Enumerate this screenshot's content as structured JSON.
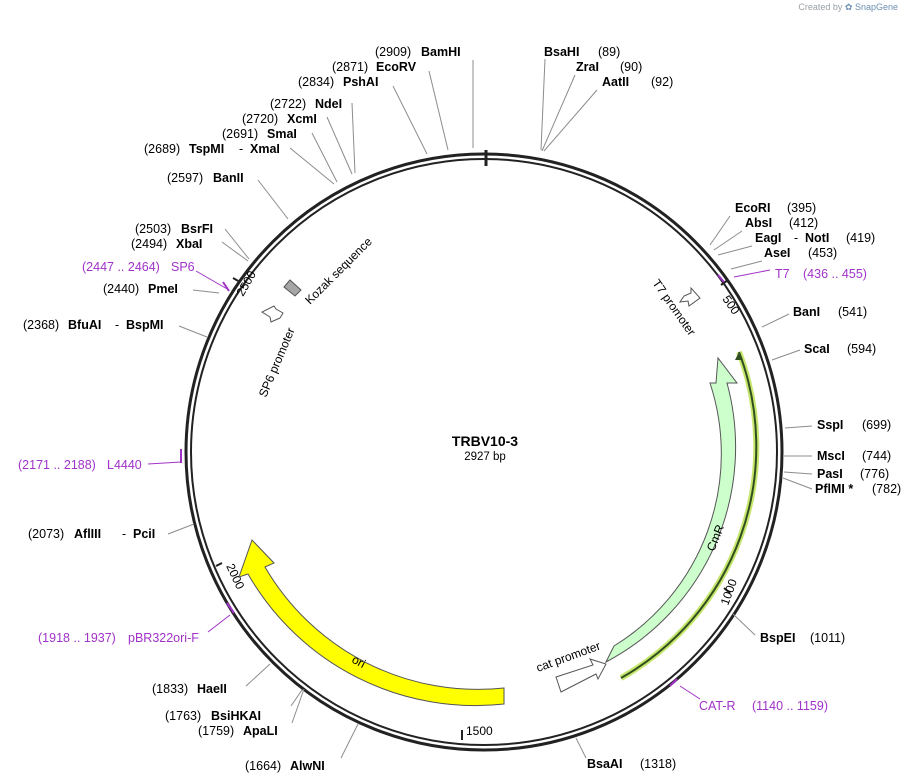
{
  "credit": {
    "prefix": "Created by",
    "brand": "SnapGene"
  },
  "plasmid": {
    "name": "TRBV10-3",
    "length_label": "2927 bp",
    "length": 2927
  },
  "ticks": [
    {
      "label": "500"
    },
    {
      "label": "1000"
    },
    {
      "label": "1500"
    },
    {
      "label": "2000"
    },
    {
      "label": "2500"
    }
  ],
  "enzymes": [
    {
      "name": "BsaHI",
      "pos": "(89)"
    },
    {
      "name": "ZraI",
      "pos": "(90)"
    },
    {
      "name": "AatII",
      "pos": "(92)"
    },
    {
      "name": "EcoRI",
      "pos": "(395)"
    },
    {
      "name": "AbsI",
      "pos": "(412)"
    },
    {
      "name": "EagI",
      "sep": "-",
      "name2": "NotI",
      "pos": "(419)"
    },
    {
      "name": "AseI",
      "pos": "(453)"
    },
    {
      "name": "BanI",
      "pos": "(541)"
    },
    {
      "name": "ScaI",
      "pos": "(594)"
    },
    {
      "name": "SspI",
      "pos": "(699)"
    },
    {
      "name": "MscI",
      "pos": "(744)"
    },
    {
      "name": "PasI",
      "pos": "(776)"
    },
    {
      "name": "PflMI *",
      "pos": "(782)"
    },
    {
      "name": "BspEI",
      "pos": "(1011)"
    },
    {
      "name": "BsaAI",
      "pos": "(1318)"
    },
    {
      "name": "AlwNI",
      "pos": "(1664)"
    },
    {
      "name": "ApaLI",
      "pos": "(1759)"
    },
    {
      "name": "BsiHKAI",
      "pos": "(1763)"
    },
    {
      "name": "HaeII",
      "pos": "(1833)"
    },
    {
      "name": "AflIII",
      "sep": "-",
      "name2": "PciI",
      "pos": "(2073)"
    },
    {
      "name": "BfuAI",
      "sep": "-",
      "name2": "BspMI",
      "pos": "(2368)"
    },
    {
      "name": "PmeI",
      "pos": "(2440)"
    },
    {
      "name": "XbaI",
      "pos": "(2494)"
    },
    {
      "name": "BsrFI",
      "pos": "(2503)"
    },
    {
      "name": "BanII",
      "pos": "(2597)"
    },
    {
      "name": "TspMI",
      "sep": "-",
      "name2": "XmaI",
      "pos": "(2689)"
    },
    {
      "name": "SmaI",
      "pos": "(2691)"
    },
    {
      "name": "XcmI",
      "pos": "(2720)"
    },
    {
      "name": "NdeI",
      "pos": "(2722)"
    },
    {
      "name": "PshAI",
      "pos": "(2834)"
    },
    {
      "name": "EcoRV",
      "pos": "(2871)"
    },
    {
      "name": "BamHI",
      "pos": "(2909)"
    }
  ],
  "primers": [
    {
      "name": "T7",
      "range": "(436 .. 455)"
    },
    {
      "name": "CAT-R",
      "range": "(1140 .. 1159)"
    },
    {
      "name": "pBR322ori-F",
      "range": "(1918 .. 1937)"
    },
    {
      "name": "L4440",
      "range": "(2171 .. 2188)"
    },
    {
      "name": "SP6",
      "range": "(2447 .. 2464)"
    }
  ],
  "features": [
    {
      "name": "CmR",
      "color": "#ccffcc"
    },
    {
      "name": "ori",
      "color": "#ffff00"
    },
    {
      "name": "cat promoter",
      "color": "#ffffff"
    },
    {
      "name": "T7 promoter",
      "color": "#ffffff"
    },
    {
      "name": "SP6 promoter",
      "color": "#ffffff"
    },
    {
      "name": "Kozak sequence",
      "color": "#a6a6a6"
    }
  ],
  "colors": {
    "primer": "#a032c8",
    "backbone": "#222222",
    "leader": "#8c8c8c",
    "cmr_line": "#2f4f1f",
    "cmr_glow": "#c8e66e"
  }
}
